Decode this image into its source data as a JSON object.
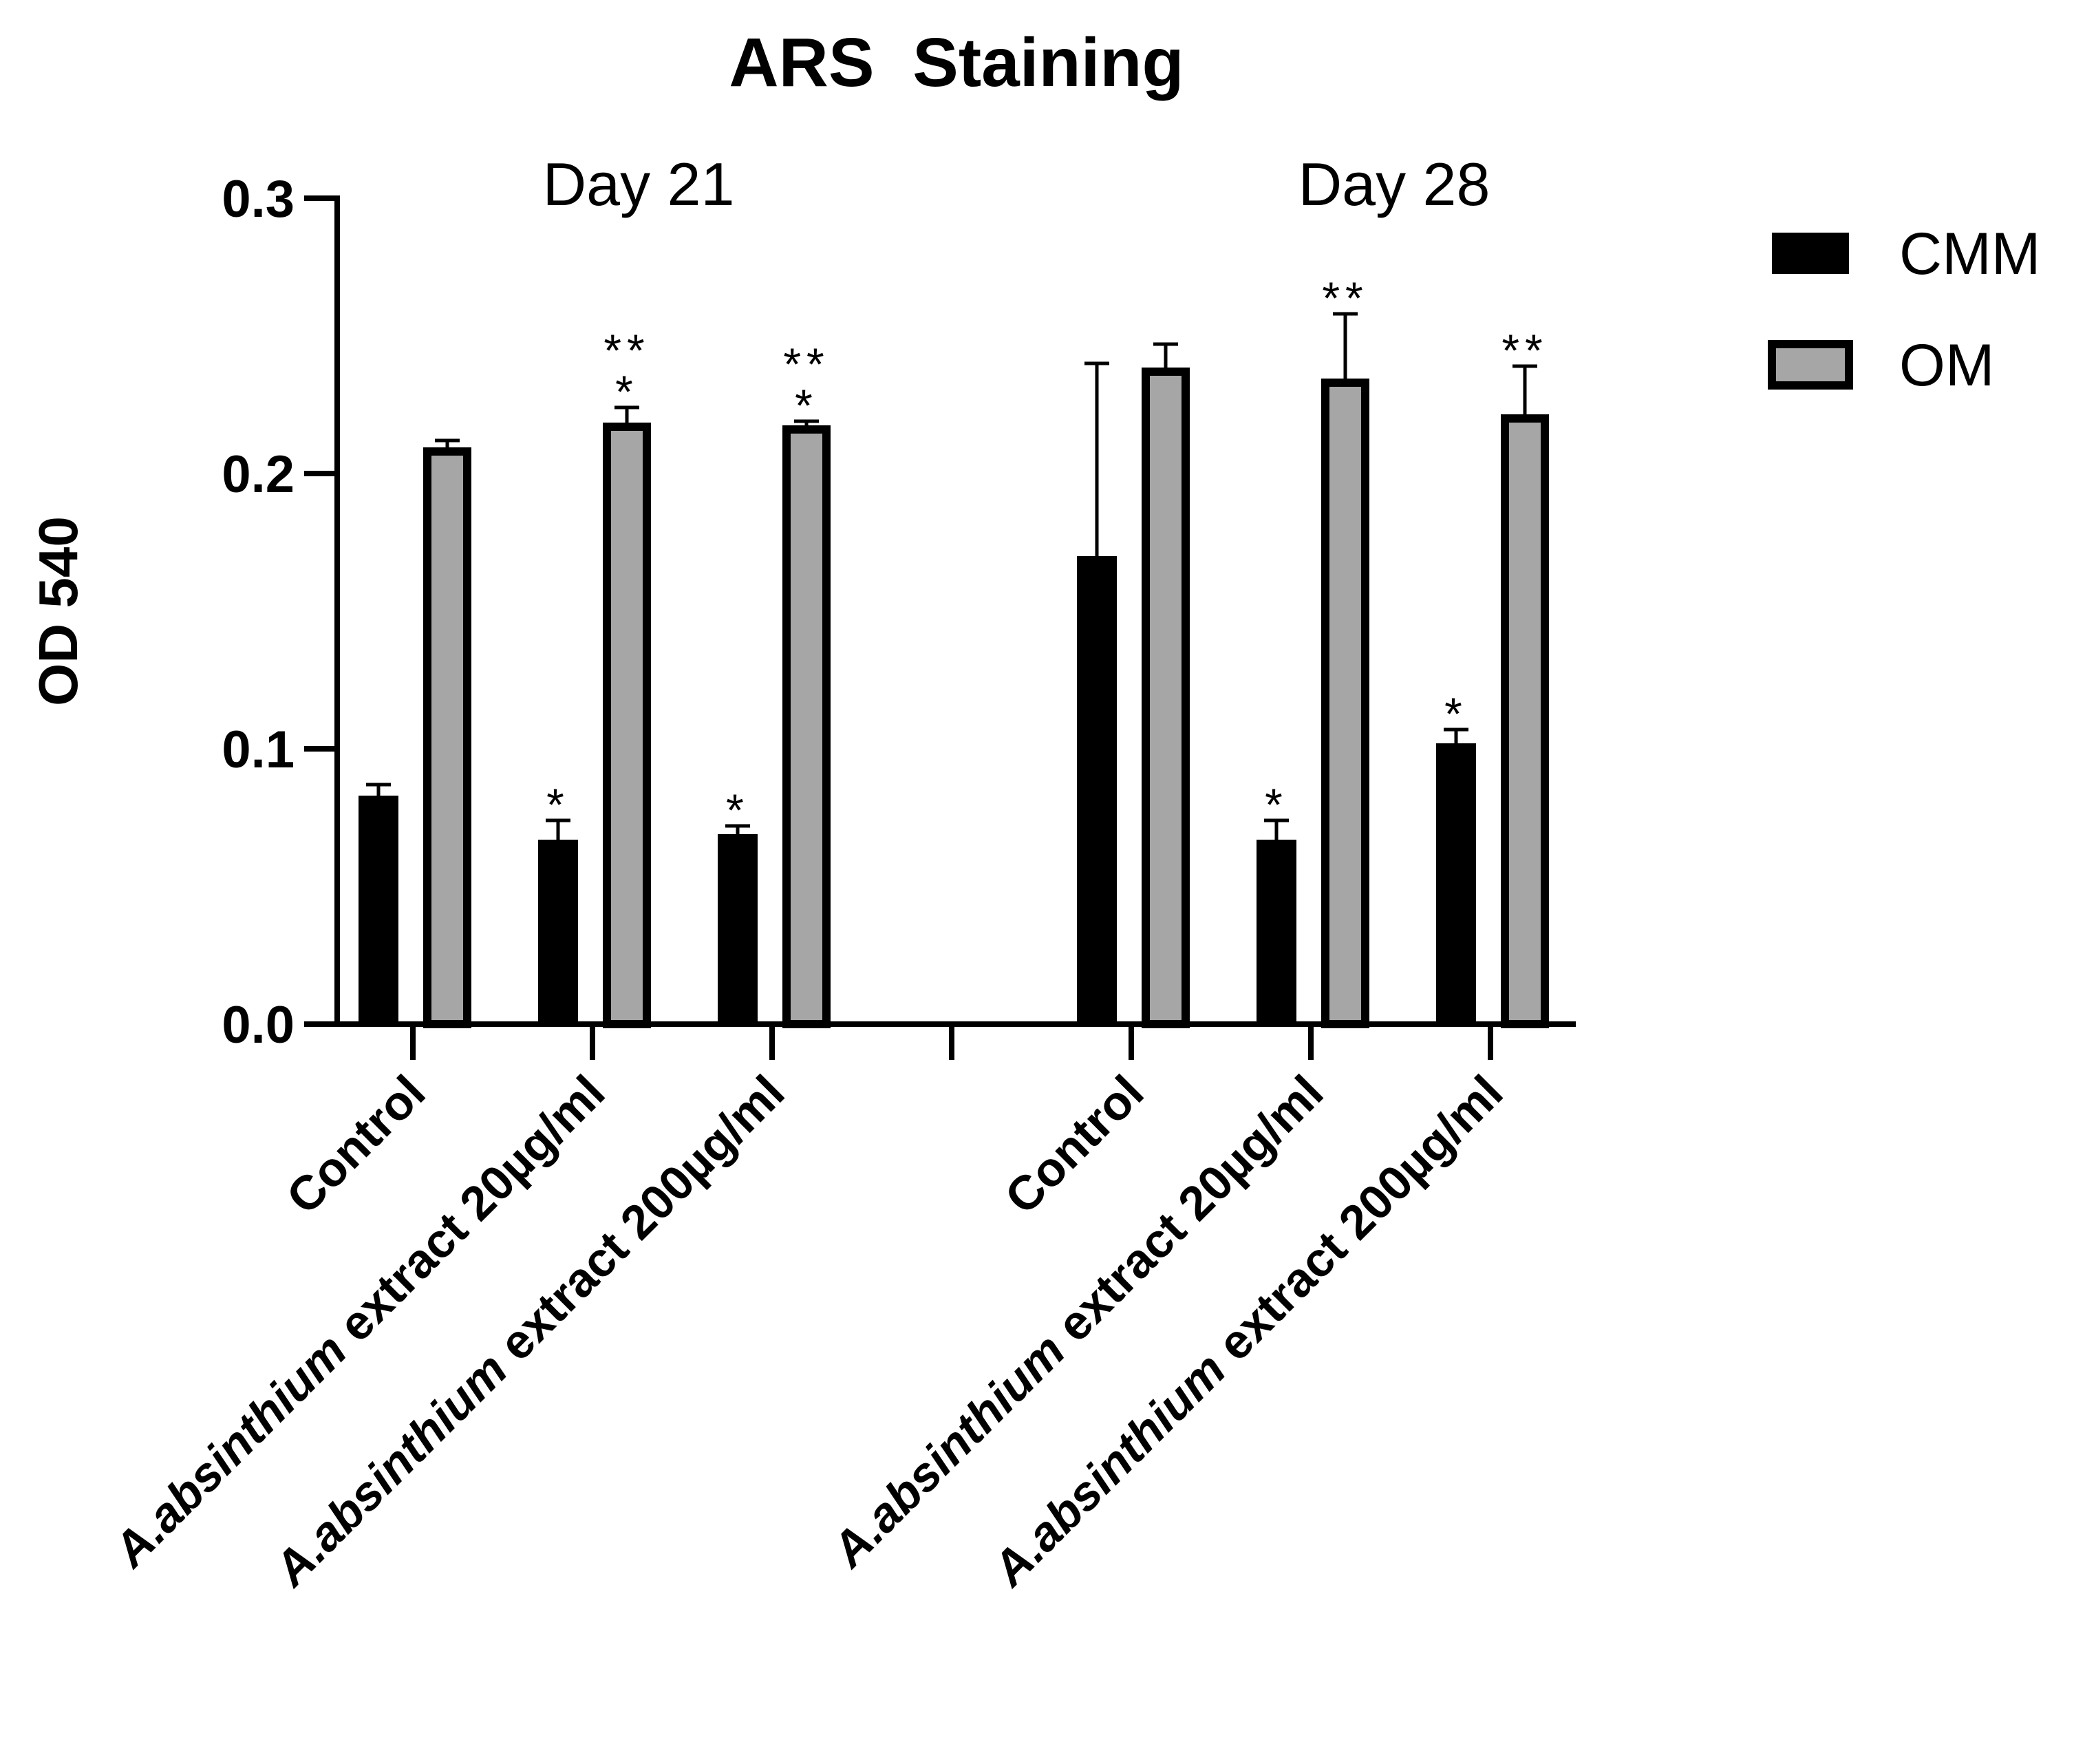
{
  "chart_data": {
    "type": "bar",
    "title": "ARS  Staining",
    "ylabel": "OD 540",
    "xlabel": "",
    "ylim": [
      0,
      0.3
    ],
    "yticks": [
      "0.0",
      "0.1",
      "0.2",
      "0.3"
    ],
    "groups": [
      {
        "label": "Day 21",
        "categories": [
          {
            "prefix": "",
            "italic": "",
            "suffix": "Control"
          },
          {
            "prefix": "",
            "italic": "A.absinthium",
            "suffix": "  extract 20µg/ml"
          },
          {
            "prefix": "",
            "italic": "A.absinthium",
            "suffix": "  extract 200µg/ml"
          }
        ]
      },
      {
        "label": "Day 28",
        "categories": [
          {
            "prefix": "",
            "italic": "",
            "suffix": "Control"
          },
          {
            "prefix": "",
            "italic": "A.absinthium",
            "suffix": "  extract 20µg/ml"
          },
          {
            "prefix": "",
            "italic": "A.absinthium",
            "suffix": "  extract 200µg/ml"
          }
        ]
      }
    ],
    "series": [
      {
        "name": "CMM",
        "color": "#000000",
        "values": [
          0.083,
          0.067,
          0.069,
          0.17,
          0.067,
          0.102
        ],
        "errors": [
          0.004,
          0.007,
          0.003,
          0.07,
          0.007,
          0.005
        ],
        "annotations": [
          [],
          [
            "*"
          ],
          [
            "*"
          ],
          [],
          [
            "*"
          ],
          [
            "*"
          ]
        ]
      },
      {
        "name": "OM",
        "color": "#a6a6a6",
        "values": [
          0.208,
          0.217,
          0.216,
          0.237,
          0.233,
          0.22
        ],
        "errors": [
          0.004,
          0.007,
          0.003,
          0.01,
          0.025,
          0.019
        ],
        "annotations": [
          [],
          [
            "**",
            "*"
          ],
          [
            "**",
            "*"
          ],
          [],
          [
            "**"
          ],
          [
            "**"
          ]
        ]
      }
    ],
    "legend_position": "top-right"
  }
}
